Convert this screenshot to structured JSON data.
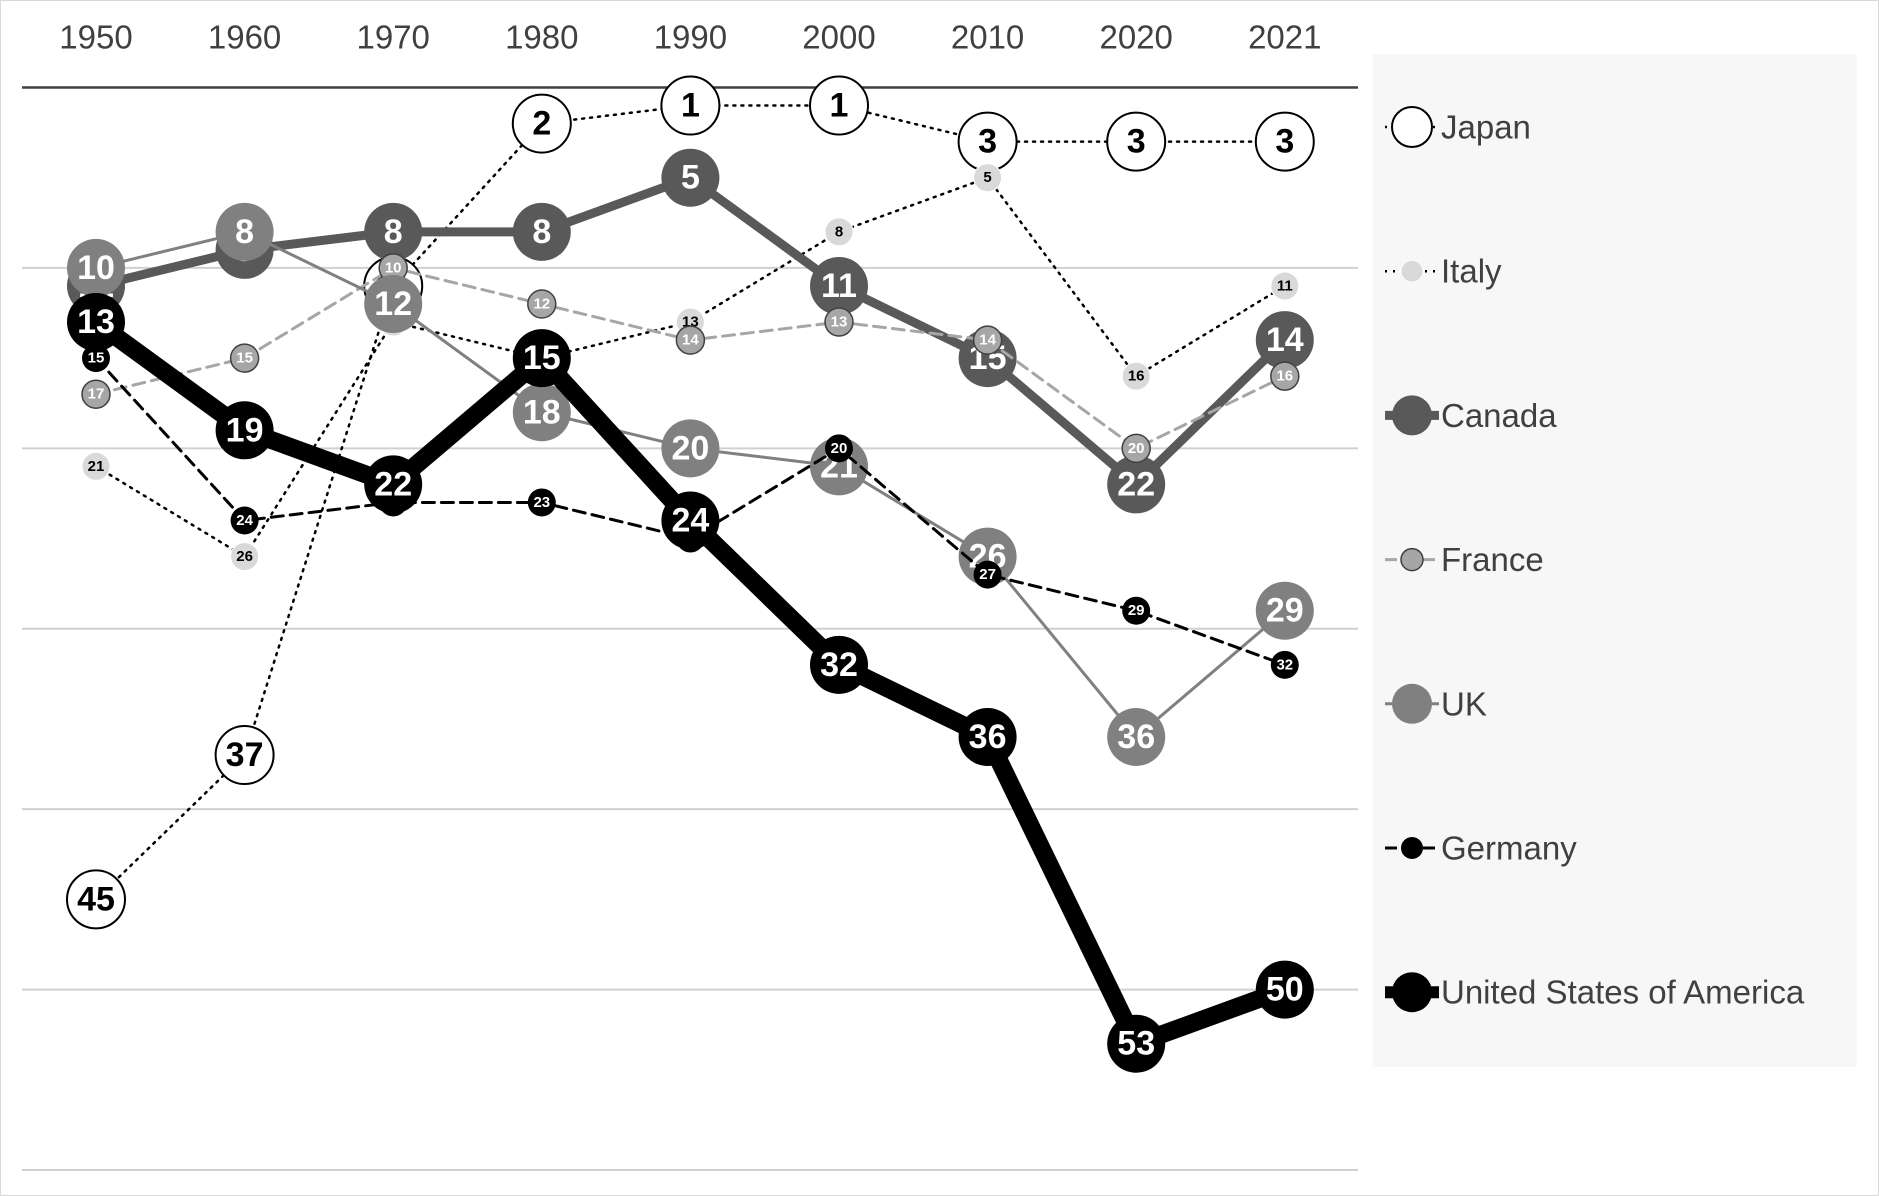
{
  "chart_data": {
    "type": "line",
    "categories": [
      "1950",
      "1960",
      "1970",
      "1980",
      "1990",
      "2000",
      "2010",
      "2020",
      "2021"
    ],
    "ylim": [
      0,
      60
    ],
    "yticks": [
      0,
      10,
      20,
      30,
      40,
      50,
      60
    ],
    "y_inverted": true,
    "grid": true,
    "legend": "right",
    "series": [
      {
        "name": "Japan",
        "color": "#ffffff",
        "line_color": "#000000",
        "line_style": "dotted",
        "values": [
          45,
          37,
          11,
          2,
          1,
          1,
          3,
          3,
          3
        ]
      },
      {
        "name": "Italy",
        "color": "#d9d9d9",
        "line_color": "#000000",
        "line_style": "dotted",
        "values": [
          21,
          26,
          13,
          15,
          13,
          8,
          5,
          16,
          11
        ]
      },
      {
        "name": "Canada",
        "color": "#595959",
        "line_color": "#595959",
        "line_style": "solid",
        "values": [
          11,
          9,
          8,
          8,
          5,
          11,
          15,
          22,
          14
        ]
      },
      {
        "name": "France",
        "color": "#a6a6a6",
        "line_color": "#a6a6a6",
        "line_style": "dashed",
        "values": [
          17,
          15,
          10,
          12,
          14,
          13,
          14,
          20,
          16
        ]
      },
      {
        "name": "UK",
        "color": "#808080",
        "line_color": "#808080",
        "line_style": "solid",
        "values": [
          10,
          8,
          12,
          18,
          20,
          21,
          26,
          36,
          29
        ]
      },
      {
        "name": "Germany",
        "color": "#000000",
        "line_color": "#000000",
        "line_style": "dashed",
        "values": [
          15,
          24,
          23,
          23,
          25,
          20,
          27,
          29,
          32
        ]
      },
      {
        "name": "United States of America",
        "color": "#000000",
        "line_color": "#000000",
        "line_style": "solid",
        "values": [
          13,
          19,
          22,
          15,
          24,
          32,
          36,
          53,
          50
        ]
      }
    ]
  }
}
